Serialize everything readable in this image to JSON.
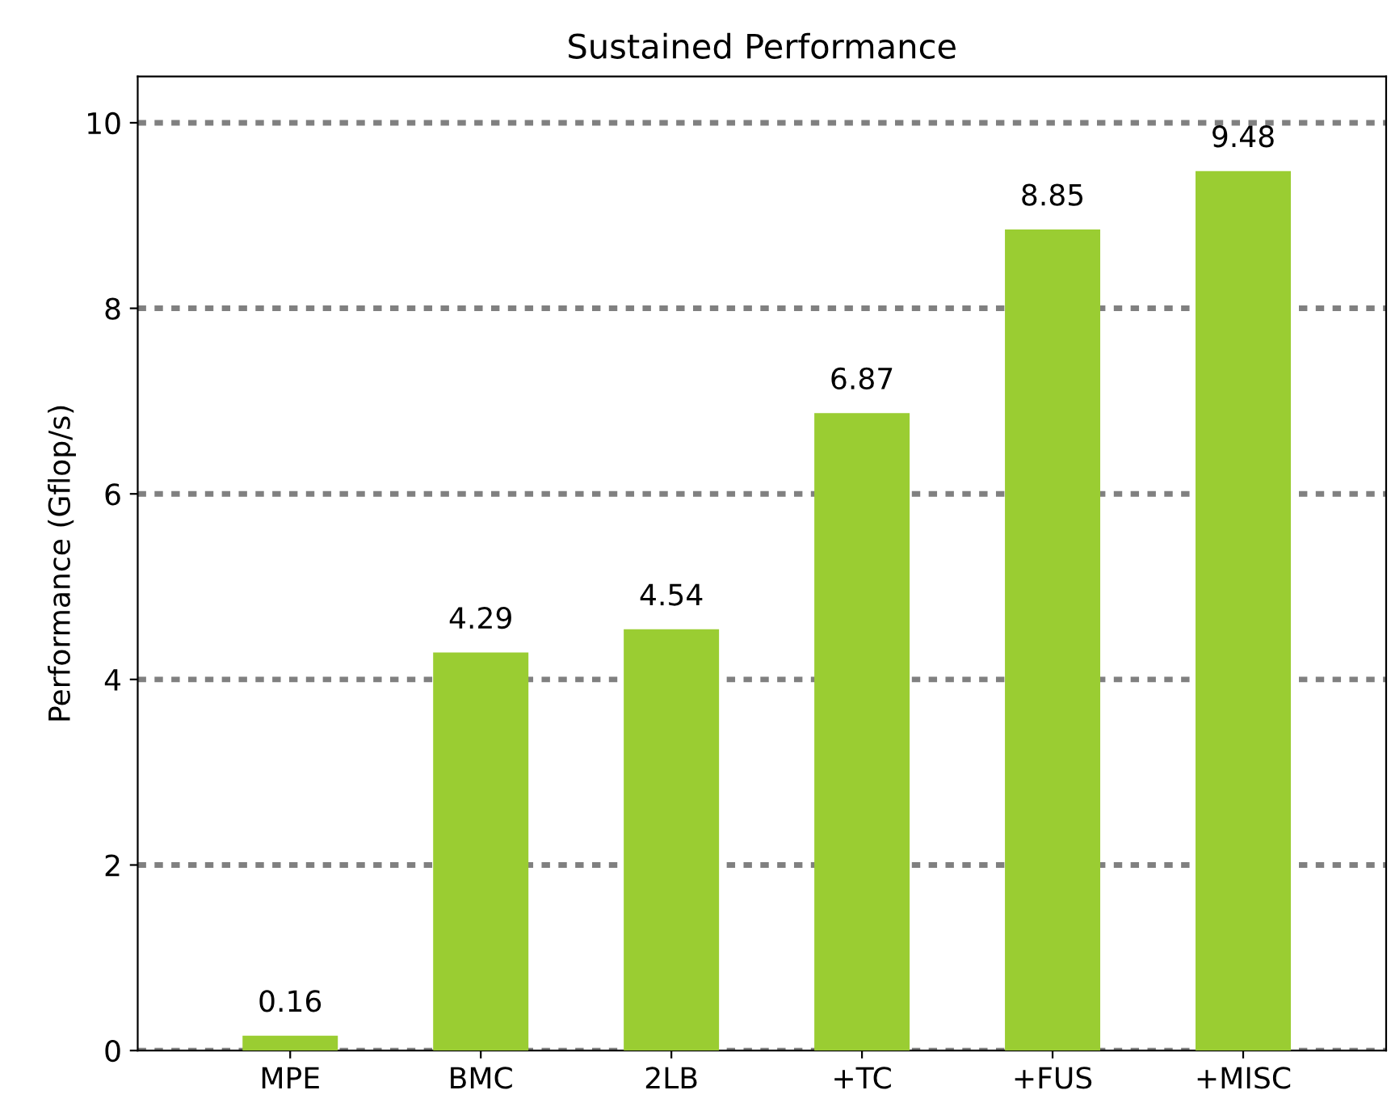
{
  "chart_data": {
    "type": "bar",
    "title": "Sustained Performance",
    "ylabel": "Performance (Gflop/s)",
    "categories": [
      "MPE",
      "BMC",
      "2LB",
      "+TC",
      "+FUS",
      "+MISC"
    ],
    "values": [
      0.16,
      4.29,
      4.54,
      6.87,
      8.85,
      9.48
    ],
    "color": "#9acd32",
    "ylim": [
      0,
      10.5
    ],
    "yticks": [
      0,
      2,
      4,
      6,
      8,
      10
    ],
    "grid": "y",
    "line_style": "dotted",
    "data_labels": true
  }
}
